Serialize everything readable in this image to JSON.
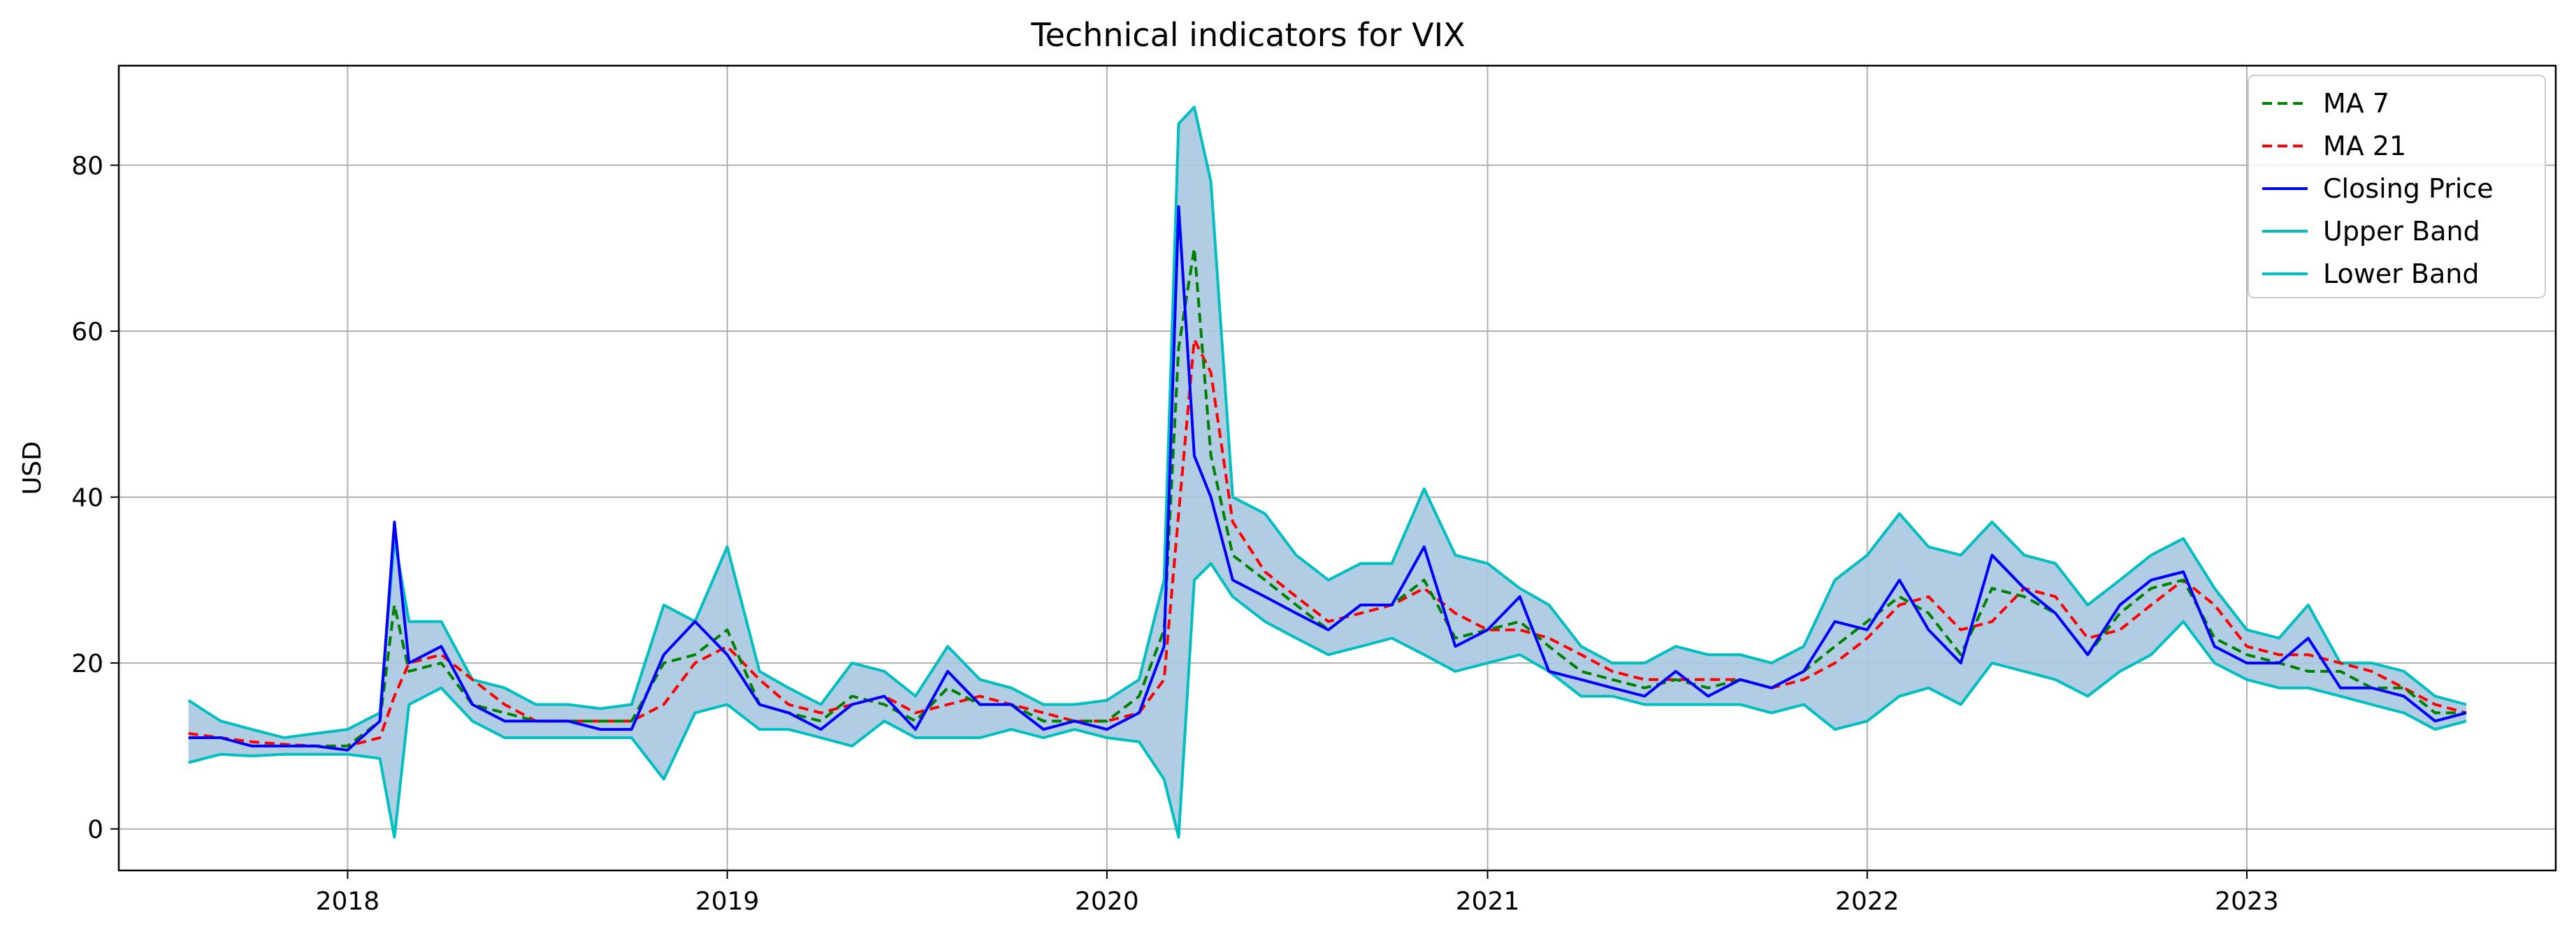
{
  "chart_data": {
    "type": "line",
    "title": "Technical indicators for VIX",
    "xlabel": "",
    "ylabel": "USD",
    "xlim": [
      "2017-05-26",
      "2023-10-25"
    ],
    "ylim": [
      -5,
      92
    ],
    "x_ticks": [
      "2018",
      "2019",
      "2020",
      "2021",
      "2022",
      "2023"
    ],
    "y_ticks": [
      0,
      20,
      40,
      60,
      80
    ],
    "grid": true,
    "legend_position": "top-right",
    "colors": {
      "ma7": "#008000",
      "ma21": "#ff0000",
      "close": "#0000ff",
      "band": "#00bfbf",
      "band_fill": "#a9c8e0"
    },
    "x": [
      "2017-08-01",
      "2017-09-01",
      "2017-10-01",
      "2017-11-01",
      "2017-12-01",
      "2018-01-01",
      "2018-02-01",
      "2018-02-15",
      "2018-03-01",
      "2018-04-01",
      "2018-05-01",
      "2018-06-01",
      "2018-07-01",
      "2018-08-01",
      "2018-09-01",
      "2018-10-01",
      "2018-11-01",
      "2018-12-01",
      "2019-01-01",
      "2019-02-01",
      "2019-03-01",
      "2019-04-01",
      "2019-05-01",
      "2019-06-01",
      "2019-07-01",
      "2019-08-01",
      "2019-09-01",
      "2019-10-01",
      "2019-11-01",
      "2019-12-01",
      "2020-01-01",
      "2020-02-01",
      "2020-02-25",
      "2020-03-10",
      "2020-03-25",
      "2020-04-10",
      "2020-05-01",
      "2020-06-01",
      "2020-07-01",
      "2020-08-01",
      "2020-09-01",
      "2020-10-01",
      "2020-11-01",
      "2020-12-01",
      "2021-01-01",
      "2021-02-01",
      "2021-03-01",
      "2021-04-01",
      "2021-05-01",
      "2021-06-01",
      "2021-07-01",
      "2021-08-01",
      "2021-09-01",
      "2021-10-01",
      "2021-11-01",
      "2021-12-01",
      "2022-01-01",
      "2022-02-01",
      "2022-03-01",
      "2022-04-01",
      "2022-05-01",
      "2022-06-01",
      "2022-07-01",
      "2022-08-01",
      "2022-09-01",
      "2022-10-01",
      "2022-11-01",
      "2022-12-01",
      "2023-01-01",
      "2023-02-01",
      "2023-03-01",
      "2023-04-01",
      "2023-05-01",
      "2023-06-01",
      "2023-07-01",
      "2023-07-31"
    ],
    "series": [
      {
        "name": "MA 7",
        "key": "ma7",
        "dash": true,
        "values": [
          11,
          11,
          10,
          10,
          10,
          10,
          13,
          27,
          19,
          20,
          15,
          14,
          13,
          13,
          13,
          13,
          20,
          21,
          24,
          15,
          14,
          13,
          16,
          15,
          13,
          17,
          15,
          15,
          13,
          13,
          13,
          16,
          24,
          58,
          70,
          45,
          33,
          30,
          27,
          24,
          27,
          27,
          30,
          23,
          24,
          25,
          22,
          19,
          18,
          17,
          18,
          17,
          18,
          17,
          19,
          22,
          25,
          28,
          26,
          21,
          29,
          28,
          26,
          21,
          26,
          29,
          30,
          23,
          21,
          20,
          19,
          19,
          17,
          17,
          14,
          14
        ]
      },
      {
        "name": "MA 21",
        "key": "ma21",
        "dash": true,
        "values": [
          11.5,
          11,
          10.5,
          10.2,
          10,
          10,
          11,
          16,
          20,
          21,
          18,
          15,
          13,
          13,
          13,
          13,
          15,
          20,
          22,
          18,
          15,
          14,
          15,
          16,
          14,
          15,
          16,
          15,
          14,
          13,
          13,
          14,
          18,
          38,
          59,
          55,
          37,
          31,
          28,
          25,
          26,
          27,
          29,
          26,
          24,
          24,
          23,
          21,
          19,
          18,
          18,
          18,
          18,
          17,
          18,
          20,
          23,
          27,
          28,
          24,
          25,
          29,
          28,
          23,
          24,
          27,
          30,
          27,
          22,
          21,
          21,
          20,
          19,
          17,
          15,
          14
        ]
      },
      {
        "name": "Closing Price",
        "key": "close",
        "dash": false,
        "values": [
          11,
          11,
          10,
          10,
          10,
          9.5,
          13,
          37,
          20,
          22,
          15,
          13,
          13,
          13,
          12,
          12,
          21,
          25,
          21,
          15,
          14,
          12,
          15,
          16,
          12,
          19,
          15,
          15,
          12,
          13,
          12,
          14,
          22,
          75,
          45,
          40,
          30,
          28,
          26,
          24,
          27,
          27,
          34,
          22,
          24,
          28,
          19,
          18,
          17,
          16,
          19,
          16,
          18,
          17,
          19,
          25,
          24,
          30,
          24,
          20,
          33,
          29,
          26,
          21,
          27,
          30,
          31,
          22,
          20,
          20,
          23,
          17,
          17,
          16,
          13,
          14
        ]
      },
      {
        "name": "Upper Band",
        "key": "upper",
        "dash": false,
        "values": [
          15.5,
          13,
          12,
          11,
          11.5,
          12,
          14,
          35,
          25,
          25,
          18,
          17,
          15,
          15,
          14.5,
          15,
          27,
          25,
          34,
          19,
          17,
          15,
          20,
          19,
          16,
          22,
          18,
          17,
          15,
          15,
          15.5,
          18,
          30,
          85,
          87,
          78,
          40,
          38,
          33,
          30,
          32,
          32,
          41,
          33,
          32,
          29,
          27,
          22,
          20,
          20,
          22,
          21,
          21,
          20,
          22,
          30,
          33,
          38,
          34,
          33,
          37,
          33,
          32,
          27,
          30,
          33,
          35,
          29,
          24,
          23,
          27,
          20,
          20,
          19,
          16,
          15
        ]
      },
      {
        "name": "Lower Band",
        "key": "lower",
        "dash": false,
        "values": [
          8,
          9,
          8.8,
          9,
          9,
          9,
          8.5,
          -1,
          15,
          17,
          13,
          11,
          11,
          11,
          11,
          11,
          6,
          14,
          15,
          12,
          12,
          11,
          10,
          13,
          11,
          11,
          11,
          12,
          11,
          12,
          11,
          10.5,
          6,
          -1,
          30,
          32,
          28,
          25,
          23,
          21,
          22,
          23,
          21,
          19,
          20,
          21,
          19,
          16,
          16,
          15,
          15,
          15,
          15,
          14,
          15,
          12,
          13,
          16,
          17,
          15,
          20,
          19,
          18,
          16,
          19,
          21,
          25,
          20,
          18,
          17,
          17,
          16,
          15,
          14,
          12,
          13
        ]
      }
    ]
  }
}
